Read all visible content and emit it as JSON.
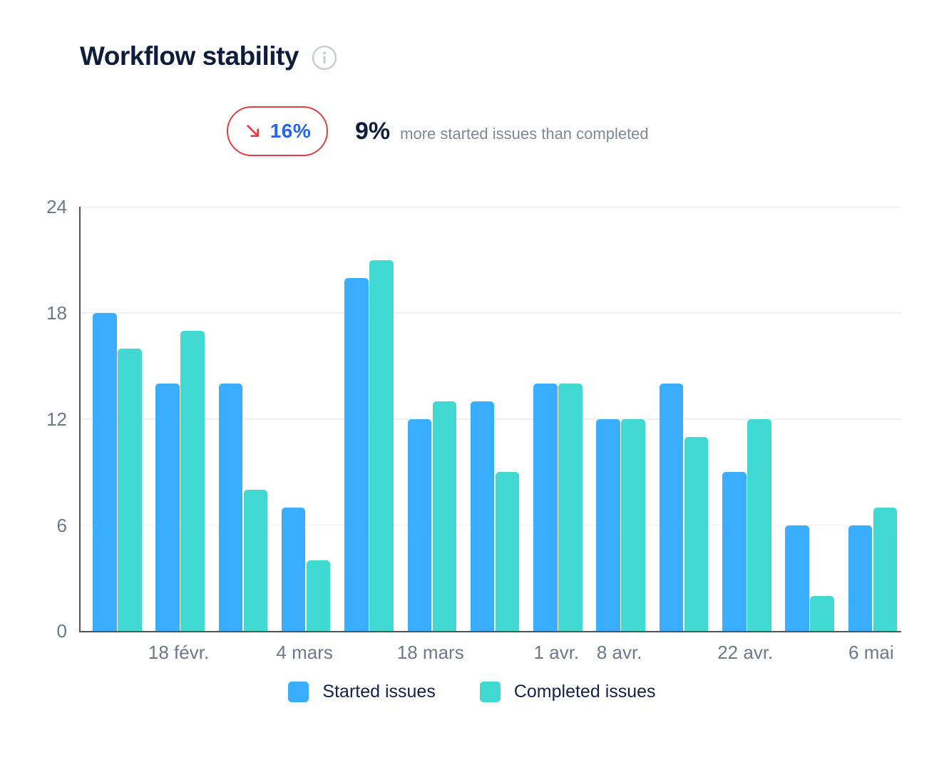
{
  "header": {
    "title": "Workflow stability"
  },
  "stats": {
    "badge_value": "16%",
    "headline_value": "9%",
    "headline_text": "more started issues than completed"
  },
  "chart_data": {
    "type": "bar",
    "title": "Workflow stability",
    "categories": [
      "",
      "18 févr.",
      "",
      "4 mars",
      "",
      "18 mars",
      "",
      "1 avr.",
      "8 avr.",
      "",
      "22 avr.",
      "",
      "6 mai"
    ],
    "series": [
      {
        "name": "Started issues",
        "color": "#3aaefc",
        "values": [
          18,
          14,
          14,
          7,
          20,
          12,
          13,
          14,
          12,
          14,
          9,
          6,
          6
        ]
      },
      {
        "name": "Completed issues",
        "color": "#41d9d2",
        "values": [
          16,
          17,
          8,
          4,
          21,
          13,
          9,
          14,
          12,
          11,
          12,
          2,
          7
        ]
      }
    ],
    "y_ticks": [
      0,
      6,
      12,
      18,
      24
    ],
    "ylim": [
      0,
      24
    ],
    "grid": true,
    "legend_position": "bottom"
  },
  "colors": {
    "started_blue": "#3aaefc",
    "completed_teal": "#41d9d2",
    "badge_border_red": "#e23d42",
    "badge_value_blue": "#2566eb",
    "title_navy": "#0f1d3d",
    "muted_text": "#7f8899",
    "axis_text": "#6b7890",
    "gridline": "#edeff4",
    "axis_line": "#515459"
  }
}
